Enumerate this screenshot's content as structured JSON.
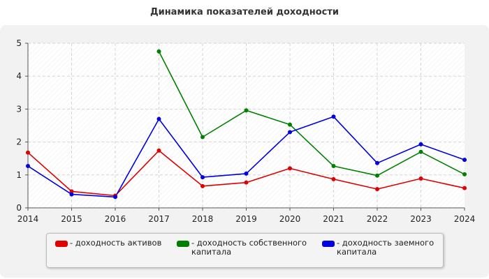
{
  "chart_data": {
    "type": "line",
    "title": "Динамика показателей доходности",
    "categories": [
      "2014",
      "2015",
      "2016",
      "2017",
      "2018",
      "2019",
      "2020",
      "2021",
      "2022",
      "2023",
      "2024"
    ],
    "ylim": [
      0,
      5
    ],
    "yticks": [
      "0",
      "1",
      "2",
      "3",
      "4",
      "5"
    ],
    "grid": true,
    "legend_position": "bottom",
    "series": [
      {
        "name": "- доходность активов",
        "color": "#e00000",
        "values": [
          1.68,
          0.5,
          0.37,
          1.74,
          0.66,
          0.77,
          1.2,
          0.87,
          0.57,
          0.89,
          0.6
        ]
      },
      {
        "name": "- доходность собственного\nкапитала",
        "color": "#008000",
        "values": [
          null,
          null,
          null,
          4.75,
          2.15,
          2.96,
          2.53,
          1.27,
          0.98,
          1.7,
          1.02
        ]
      },
      {
        "name": "- доходность заемного\nкапитала",
        "color": "#0000e0",
        "values": [
          1.27,
          0.41,
          0.33,
          2.7,
          0.93,
          1.04,
          2.3,
          2.77,
          1.36,
          1.93,
          1.46
        ]
      }
    ]
  }
}
